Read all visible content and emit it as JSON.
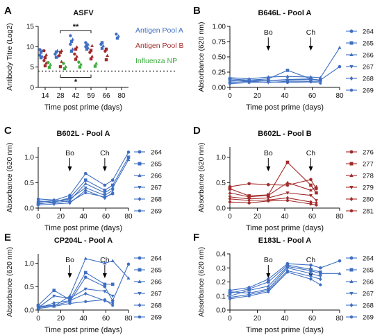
{
  "colors": {
    "pool_a": "#3f6fc2",
    "pool_b": "#a32a2a",
    "influenza": "#3dab3d",
    "axis": "#111111",
    "annot": "#000000"
  },
  "chart_data": [
    {
      "panel": "A",
      "type": "scatter",
      "title": "ASFV",
      "xlabel": "Time post prime (days)",
      "ylabel": "Antibody Titre (Log2)",
      "x_ticks": [
        "14",
        "28",
        "42",
        "59",
        "66",
        "80"
      ],
      "ylim": [
        0,
        15
      ],
      "y_ticks": [
        0,
        5,
        10,
        15
      ],
      "threshold": 4,
      "significance": [
        {
          "label": "**",
          "from": "28",
          "to": "59"
        },
        {
          "label": "*",
          "from": "28",
          "to": "59"
        }
      ],
      "legend": [
        "Antigen Pool A",
        "Antigen Pool B",
        "Influenza NP"
      ],
      "series": [
        {
          "name": "Antigen Pool A",
          "color": "pool_a",
          "points": [
            [
              "14",
              7.3
            ],
            [
              "14",
              7.6
            ],
            [
              "14",
              7.9
            ],
            [
              "14",
              8.6
            ],
            [
              "14",
              9.0
            ],
            [
              "14",
              9.3
            ],
            [
              "28",
              7.4
            ],
            [
              "28",
              7.6
            ],
            [
              "28",
              8.2
            ],
            [
              "28",
              8.7
            ],
            [
              "28",
              9.0
            ],
            [
              "42",
              8.9
            ],
            [
              "42",
              9.4
            ],
            [
              "42",
              10.6
            ],
            [
              "42",
              11.3
            ],
            [
              "42",
              11.8
            ],
            [
              "42",
              12.7
            ],
            [
              "59",
              9.4
            ],
            [
              "59",
              9.7
            ],
            [
              "59",
              10.0
            ],
            [
              "59",
              10.3
            ],
            [
              "59",
              10.6
            ],
            [
              "59",
              11.0
            ],
            [
              "66",
              9.6
            ],
            [
              "66",
              10.2
            ],
            [
              "66",
              10.6
            ],
            [
              "66",
              11.0
            ],
            [
              "80",
              12.1
            ],
            [
              "80",
              12.6
            ],
            [
              "80",
              13.1
            ]
          ]
        },
        {
          "name": "Antigen Pool B",
          "color": "pool_b",
          "points": [
            [
              "14",
              5.3
            ],
            [
              "14",
              6.0
            ],
            [
              "14",
              6.6
            ],
            [
              "14",
              7.3
            ],
            [
              "14",
              8.0
            ],
            [
              "14",
              9.0
            ],
            [
              "28",
              5.1
            ],
            [
              "28",
              6.3
            ],
            [
              "28",
              7.8
            ],
            [
              "28",
              8.6
            ],
            [
              "28",
              9.0
            ],
            [
              "42",
              6.9
            ],
            [
              "42",
              7.6
            ],
            [
              "42",
              8.2
            ],
            [
              "42",
              9.4
            ],
            [
              "42",
              9.9
            ],
            [
              "59",
              7.0
            ],
            [
              "59",
              7.6
            ],
            [
              "59",
              8.6
            ],
            [
              "59",
              9.1
            ],
            [
              "59",
              10.2
            ],
            [
              "66",
              6.8
            ],
            [
              "66",
              7.8
            ],
            [
              "66",
              8.9
            ],
            [
              "66",
              9.4
            ]
          ]
        },
        {
          "name": "Influenza NP",
          "color": "influenza",
          "points": [
            [
              "14",
              4.9
            ],
            [
              "14",
              5.6
            ],
            [
              "14",
              6.1
            ],
            [
              "28",
              4.6
            ],
            [
              "28",
              5.1
            ],
            [
              "28",
              5.9
            ],
            [
              "42",
              5.0
            ],
            [
              "42",
              5.7
            ],
            [
              "42",
              6.2
            ],
            [
              "59",
              5.2
            ],
            [
              "59",
              5.9
            ]
          ]
        }
      ]
    },
    {
      "panel": "B",
      "type": "line",
      "title": "B646L - Pool A",
      "xlabel": "Time post prime (days)",
      "ylabel": "Absorbance (620 nm)",
      "xlim": [
        0,
        80
      ],
      "x_ticks": [
        0,
        20,
        40,
        60,
        80
      ],
      "ylim": [
        0,
        1.0
      ],
      "y_ticks": [
        "0.00",
        "0.25",
        "0.50",
        "0.75",
        "1.00"
      ],
      "annotations": [
        {
          "label": "Bo",
          "x": 28
        },
        {
          "label": "Ch",
          "x": 59
        }
      ],
      "color": "pool_a",
      "series": [
        {
          "name": "264",
          "marker": "circle",
          "x": [
            0,
            14,
            28,
            42,
            59,
            66,
            80
          ],
          "y": [
            0.08,
            0.1,
            0.11,
            0.12,
            0.13,
            0.12,
            0.34
          ]
        },
        {
          "name": "265",
          "marker": "square",
          "x": [
            0,
            14,
            28,
            42,
            59,
            66
          ],
          "y": [
            0.14,
            0.12,
            0.14,
            0.28,
            0.14,
            0.12
          ]
        },
        {
          "name": "266",
          "marker": "triangle",
          "x": [
            0,
            14,
            28,
            42,
            59,
            66,
            80
          ],
          "y": [
            0.16,
            0.14,
            0.17,
            0.18,
            0.17,
            0.16,
            0.65
          ]
        },
        {
          "name": "267",
          "marker": "tridown",
          "x": [
            0,
            14,
            28,
            42,
            59,
            66
          ],
          "y": [
            0.12,
            0.1,
            0.08,
            0.1,
            0.1,
            0.1
          ]
        },
        {
          "name": "268",
          "marker": "diamond",
          "x": [
            0,
            14,
            28,
            42,
            59,
            66
          ],
          "y": [
            0.1,
            0.12,
            0.11,
            0.13,
            0.14,
            0.11
          ]
        },
        {
          "name": "269",
          "marker": "hex",
          "x": [
            0,
            14,
            28,
            42,
            59,
            66
          ],
          "y": [
            0.06,
            0.08,
            0.09,
            0.08,
            0.09,
            0.07
          ]
        }
      ]
    },
    {
      "panel": "C",
      "type": "line",
      "title": "B602L - Pool A",
      "xlabel": "Time post prime (days)",
      "ylabel": "Absorbance (620 nm)",
      "xlim": [
        0,
        80
      ],
      "x_ticks": [
        0,
        20,
        40,
        60,
        80
      ],
      "ylim": [
        0,
        1.2
      ],
      "y_ticks": [
        "0.0",
        "0.5",
        "1.0"
      ],
      "annotations": [
        {
          "label": "Bo",
          "x": 28
        },
        {
          "label": "Ch",
          "x": 59
        }
      ],
      "color": "pool_a",
      "series": [
        {
          "name": "264",
          "marker": "circle",
          "x": [
            0,
            14,
            28,
            42,
            59,
            66,
            80
          ],
          "y": [
            0.12,
            0.15,
            0.25,
            0.68,
            0.45,
            0.55,
            1.1
          ]
        },
        {
          "name": "265",
          "marker": "square",
          "x": [
            0,
            14,
            28,
            42,
            59,
            66,
            80
          ],
          "y": [
            0.08,
            0.12,
            0.2,
            0.55,
            0.35,
            0.45,
            1.0
          ]
        },
        {
          "name": "266",
          "marker": "triangle",
          "x": [
            0,
            14,
            28,
            42,
            59,
            66,
            80
          ],
          "y": [
            0.1,
            0.1,
            0.15,
            0.48,
            0.3,
            0.4,
            0.95
          ]
        },
        {
          "name": "267",
          "marker": "tridown",
          "x": [
            0,
            14,
            28,
            42,
            59,
            66
          ],
          "y": [
            0.14,
            0.12,
            0.18,
            0.4,
            0.25,
            0.35
          ]
        },
        {
          "name": "268",
          "marker": "diamond",
          "x": [
            0,
            14,
            28,
            42,
            59,
            66
          ],
          "y": [
            0.06,
            0.08,
            0.1,
            0.35,
            0.2,
            0.3
          ]
        },
        {
          "name": "269",
          "marker": "hex",
          "x": [
            0,
            14,
            28,
            42,
            59,
            66
          ],
          "y": [
            0.18,
            0.16,
            0.12,
            0.3,
            0.22,
            0.28
          ]
        }
      ]
    },
    {
      "panel": "D",
      "type": "line",
      "title": "B602L - Pool B",
      "xlabel": "Time post prime (days)",
      "ylabel": "Absorbance (620 nm)",
      "xlim": [
        0,
        80
      ],
      "x_ticks": [
        0,
        20,
        40,
        60,
        80
      ],
      "ylim": [
        0,
        1.2
      ],
      "y_ticks": [
        "0.0",
        "0.5",
        "1.0"
      ],
      "annotations": [
        {
          "label": "Bo",
          "x": 28
        },
        {
          "label": "Ch",
          "x": 59
        }
      ],
      "color": "pool_b",
      "series": [
        {
          "name": "276",
          "marker": "circle",
          "x": [
            0,
            14,
            28,
            42,
            59,
            63
          ],
          "y": [
            0.42,
            0.48,
            0.46,
            0.45,
            0.56,
            0.38
          ]
        },
        {
          "name": "277",
          "marker": "square",
          "x": [
            0,
            14,
            28,
            42,
            59,
            63
          ],
          "y": [
            0.38,
            0.24,
            0.26,
            0.9,
            0.45,
            0.3
          ]
        },
        {
          "name": "278",
          "marker": "triangle",
          "x": [
            0,
            14,
            28,
            42,
            59,
            63
          ],
          "y": [
            0.3,
            0.22,
            0.25,
            0.5,
            0.35,
            0.42
          ]
        },
        {
          "name": "279",
          "marker": "tridown",
          "x": [
            0,
            14,
            28,
            42,
            59,
            63
          ],
          "y": [
            0.22,
            0.18,
            0.2,
            0.3,
            0.25,
            0.15
          ]
        },
        {
          "name": "280",
          "marker": "diamond",
          "x": [
            0,
            14,
            28,
            42,
            59,
            63
          ],
          "y": [
            0.18,
            0.15,
            0.16,
            0.2,
            0.12,
            0.1
          ]
        },
        {
          "name": "281",
          "marker": "hex",
          "x": [
            0,
            14,
            28,
            42,
            59,
            63
          ],
          "y": [
            0.12,
            0.1,
            0.14,
            0.15,
            0.08,
            0.06
          ]
        }
      ]
    },
    {
      "panel": "E",
      "type": "line",
      "title": "CP204L - Pool A",
      "xlabel": "Time post prime (days)",
      "ylabel": "Absorbance (620 nm)",
      "xlim": [
        0,
        80
      ],
      "x_ticks": [
        0,
        20,
        40,
        60,
        80
      ],
      "ylim": [
        0,
        1.2
      ],
      "y_ticks": [
        "0.0",
        "0.5",
        "1.0"
      ],
      "annotations": [
        {
          "label": "Bo",
          "x": 28
        },
        {
          "label": "Ch",
          "x": 59
        }
      ],
      "color": "pool_a",
      "series": [
        {
          "name": "264",
          "marker": "circle",
          "x": [
            0,
            14,
            28,
            42,
            59,
            66,
            80
          ],
          "y": [
            0.08,
            0.1,
            0.18,
            0.7,
            0.5,
            0.2,
            0.98
          ]
        },
        {
          "name": "265",
          "marker": "square",
          "x": [
            0,
            14,
            28,
            42,
            59,
            66
          ],
          "y": [
            0.1,
            0.42,
            0.22,
            0.8,
            0.55,
            0.55
          ]
        },
        {
          "name": "266",
          "marker": "triangle",
          "x": [
            0,
            14,
            28,
            42,
            59,
            66,
            80
          ],
          "y": [
            0.06,
            0.08,
            0.3,
            1.1,
            1.0,
            1.05,
            0.68
          ]
        },
        {
          "name": "267",
          "marker": "tridown",
          "x": [
            0,
            14,
            28,
            42,
            59,
            66
          ],
          "y": [
            0.05,
            0.3,
            0.25,
            0.45,
            0.4,
            0.3
          ]
        },
        {
          "name": "268",
          "marker": "diamond",
          "x": [
            0,
            14,
            28,
            42,
            59,
            66
          ],
          "y": [
            0.04,
            0.15,
            0.2,
            0.35,
            0.2,
            0.15
          ]
        },
        {
          "name": "269",
          "marker": "hex",
          "x": [
            0,
            14,
            28,
            42,
            59,
            66
          ],
          "y": [
            0.03,
            0.08,
            0.14,
            0.18,
            0.22,
            0.1
          ]
        }
      ]
    },
    {
      "panel": "F",
      "type": "line",
      "title": "E183L - Pool A",
      "xlabel": "Time post prime (days)",
      "ylabel": "Absorbance (620 nm)",
      "xlim": [
        0,
        80
      ],
      "x_ticks": [
        0,
        20,
        40,
        60,
        80
      ],
      "ylim": [
        0,
        0.4
      ],
      "y_ticks": [
        "0.0",
        "0.1",
        "0.2",
        "0.3",
        "0.4"
      ],
      "annotations": [
        {
          "label": "Bo",
          "x": 28
        },
        {
          "label": "Ch",
          "x": 59
        }
      ],
      "color": "pool_a",
      "series": [
        {
          "name": "264",
          "marker": "circle",
          "x": [
            0,
            14,
            28,
            42,
            59,
            66,
            80
          ],
          "y": [
            0.14,
            0.16,
            0.22,
            0.33,
            0.32,
            0.3,
            0.35
          ]
        },
        {
          "name": "265",
          "marker": "square",
          "x": [
            0,
            14,
            28,
            42,
            59,
            66
          ],
          "y": [
            0.12,
            0.15,
            0.2,
            0.32,
            0.29,
            0.27
          ]
        },
        {
          "name": "266",
          "marker": "triangle",
          "x": [
            0,
            14,
            28,
            42,
            59,
            66,
            80
          ],
          "y": [
            0.1,
            0.14,
            0.17,
            0.31,
            0.28,
            0.26,
            0.26
          ]
        },
        {
          "name": "267",
          "marker": "tridown",
          "x": [
            0,
            14,
            28,
            42,
            59,
            66
          ],
          "y": [
            0.13,
            0.12,
            0.15,
            0.3,
            0.26,
            0.24
          ]
        },
        {
          "name": "268",
          "marker": "diamond",
          "x": [
            0,
            14,
            28,
            42,
            59,
            66
          ],
          "y": [
            0.09,
            0.11,
            0.14,
            0.28,
            0.24,
            0.22
          ]
        },
        {
          "name": "269",
          "marker": "hex",
          "x": [
            0,
            14,
            28,
            42,
            59,
            66
          ],
          "y": [
            0.08,
            0.1,
            0.13,
            0.27,
            0.22,
            0.18
          ]
        }
      ]
    }
  ]
}
